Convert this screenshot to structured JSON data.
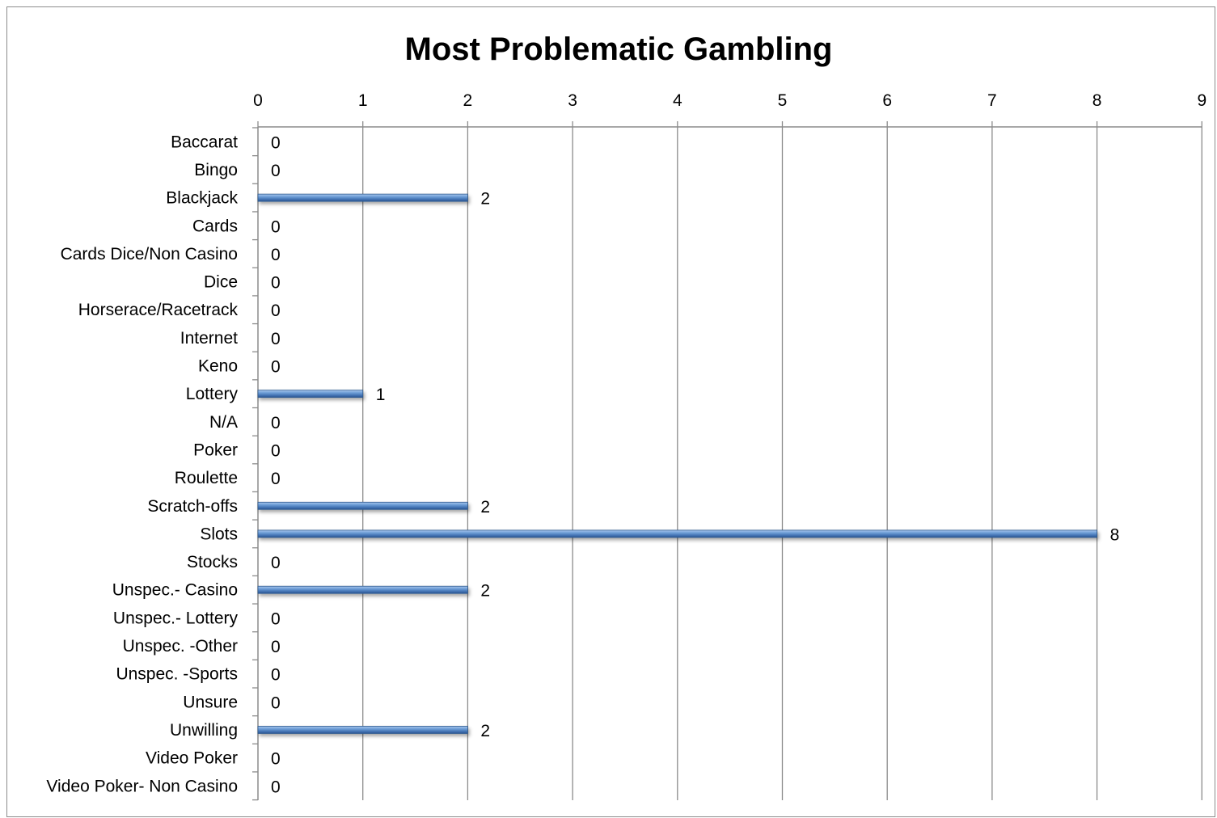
{
  "chart_data": {
    "type": "bar",
    "orientation": "horizontal",
    "title": "Most Problematic Gambling",
    "xlabel": "",
    "ylabel": "",
    "xlim": [
      0,
      9
    ],
    "x_ticks": [
      0,
      1,
      2,
      3,
      4,
      5,
      6,
      7,
      8,
      9
    ],
    "x_axis_position": "top",
    "grid": true,
    "legend": "none",
    "bar_color": "#4f81bd",
    "categories": [
      "Baccarat",
      "Bingo",
      "Blackjack",
      "Cards",
      "Cards Dice/Non Casino",
      "Dice",
      "Horserace/Racetrack",
      "Internet",
      "Keno",
      "Lottery",
      "N/A",
      "Poker",
      "Roulette",
      "Scratch-offs",
      "Slots",
      "Stocks",
      "Unspec.- Casino",
      "Unspec.- Lottery",
      "Unspec. -Other",
      "Unspec. -Sports",
      "Unsure",
      "Unwilling",
      "Video Poker",
      "Video Poker- Non Casino"
    ],
    "values": [
      0,
      0,
      2,
      0,
      0,
      0,
      0,
      0,
      0,
      1,
      0,
      0,
      0,
      2,
      8,
      0,
      2,
      0,
      0,
      0,
      0,
      2,
      0,
      0
    ]
  }
}
